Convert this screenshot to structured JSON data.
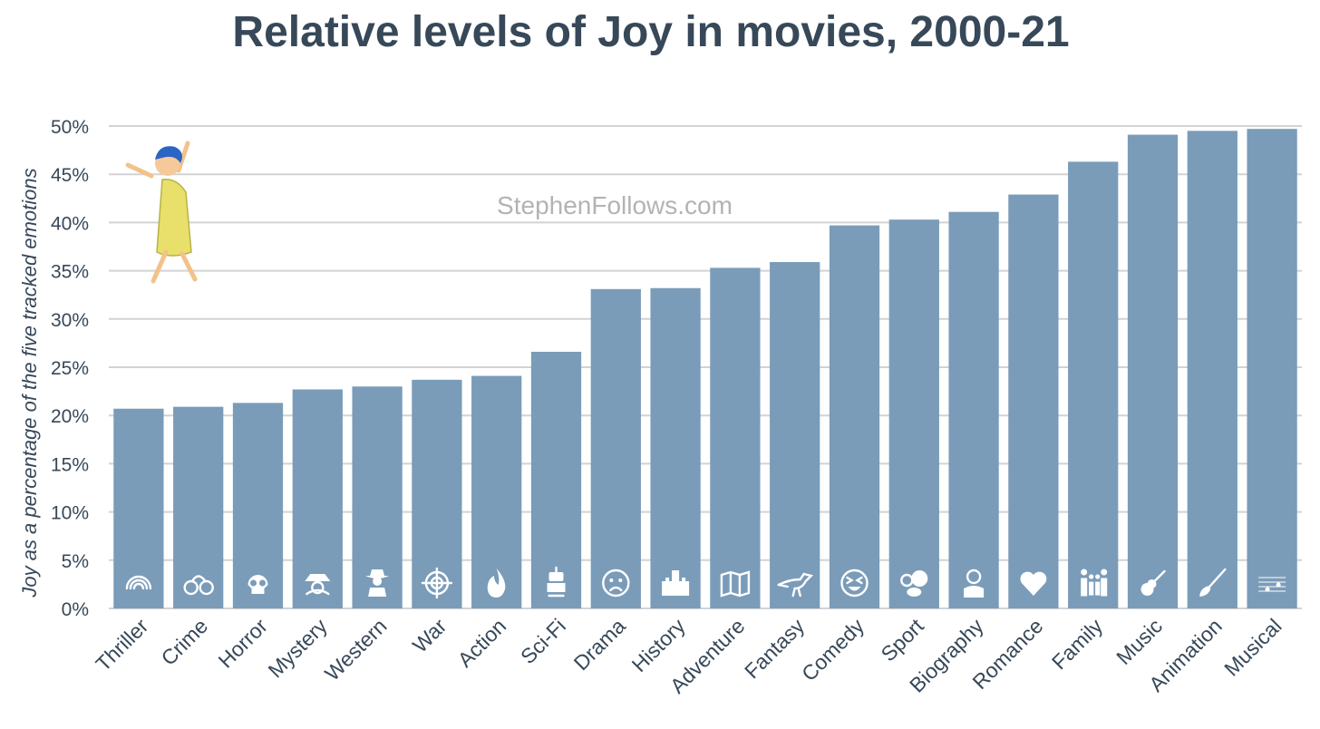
{
  "chart_data": {
    "type": "bar",
    "title": "Relative levels of Joy in movies, 2000-21",
    "xlabel": "",
    "ylabel": "Joy as a percentage of the five tracked emotions",
    "ylim": [
      0,
      50
    ],
    "yticks": [
      "0%",
      "5%",
      "10%",
      "15%",
      "20%",
      "25%",
      "30%",
      "35%",
      "40%",
      "45%",
      "50%"
    ],
    "categories": [
      "Thriller",
      "Crime",
      "Horror",
      "Mystery",
      "Western",
      "War",
      "Action",
      "Sci-Fi",
      "Drama",
      "History",
      "Adventure",
      "Fantasy",
      "Comedy",
      "Sport",
      "Biography",
      "Romance",
      "Family",
      "Music",
      "Animation",
      "Musical"
    ],
    "values": [
      20.7,
      20.9,
      21.3,
      22.7,
      23.0,
      23.7,
      24.1,
      26.6,
      33.1,
      33.2,
      35.3,
      35.9,
      39.7,
      40.3,
      41.1,
      42.9,
      46.3,
      49.1,
      49.5,
      49.7
    ],
    "icons": [
      "fingerprint-icon",
      "handcuffs-icon",
      "skull-icon",
      "detective-icon",
      "cowboy-icon",
      "crosshair-icon",
      "flame-icon",
      "robot-icon",
      "sad-face-icon",
      "castle-icon",
      "map-icon",
      "dinosaur-icon",
      "laughing-face-icon",
      "sports-balls-icon",
      "person-icon",
      "heart-icon",
      "family-icon",
      "guitar-icon",
      "paintbrush-icon",
      "music-notes-icon"
    ],
    "watermark": "StephenFollows.com",
    "bar_color": "#7a9cb9",
    "grid": true,
    "legend": "none"
  },
  "decoration": {
    "character": "joy-character-icon",
    "character_color": "#e8e06a"
  }
}
